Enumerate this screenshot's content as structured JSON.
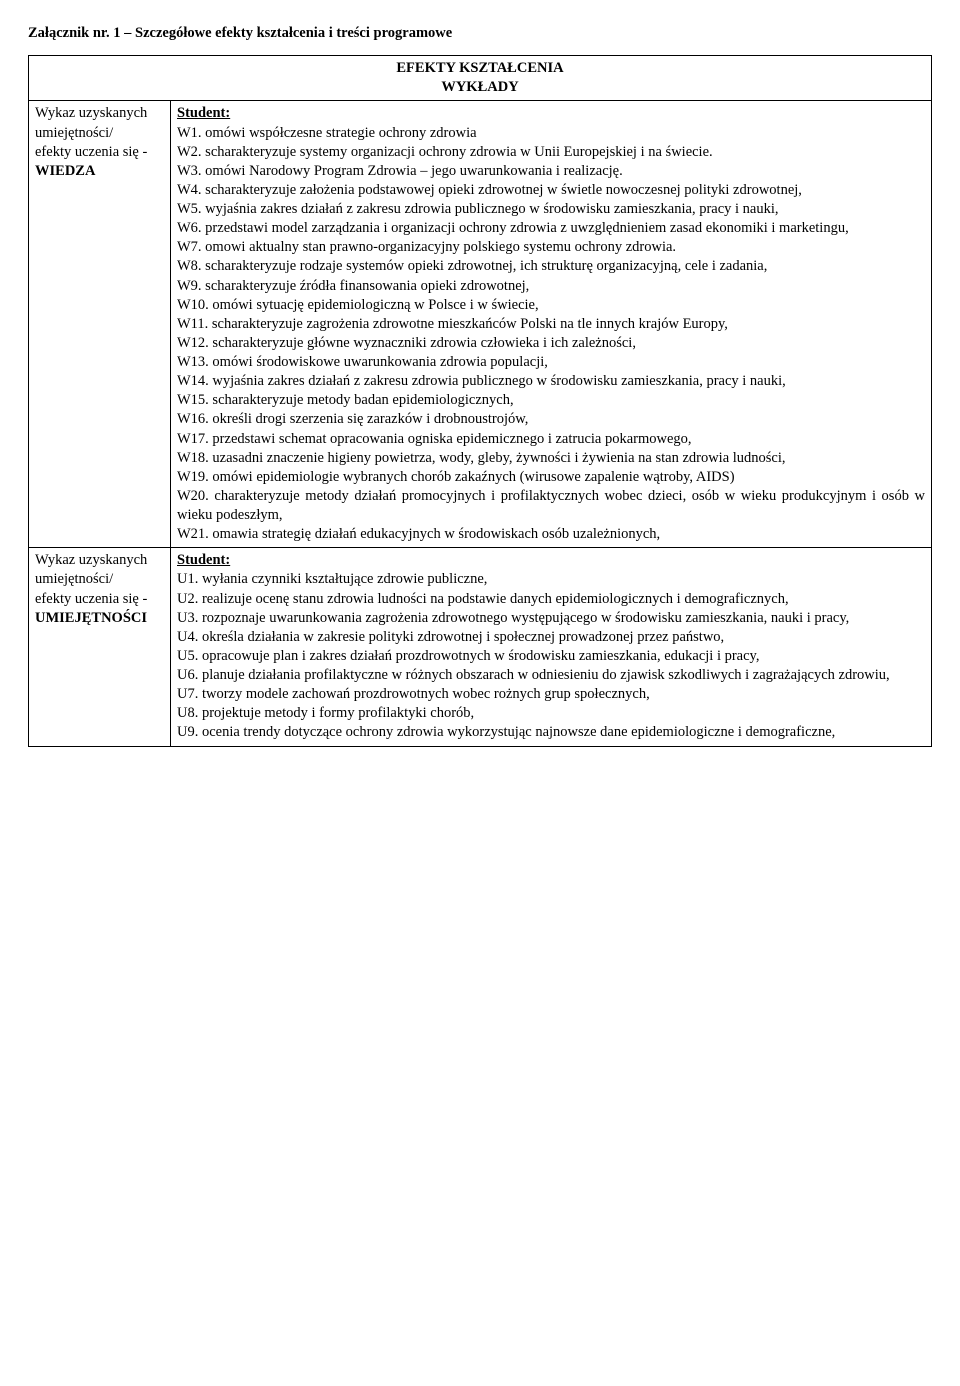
{
  "title": "Załącznik nr. 1 – Szczegółowe efekty kształcenia i treści programowe",
  "header": {
    "line1": "EFEKTY KSZTAŁCENIA",
    "line2": "WYKŁADY"
  },
  "leftLabels": {
    "wiedza": {
      "l1": "Wykaz uzyskanych",
      "l2": "umiejętności/",
      "l3": "efekty uczenia się -",
      "l4": "WIEDZA"
    },
    "umiej": {
      "l1": "Wykaz uzyskanych",
      "l2": "umiejętności/",
      "l3": "efekty uczenia się -",
      "l4": "UMIEJĘTNOŚCI"
    }
  },
  "studentLabel": "Student:",
  "wiedzaItems": [
    "W1.  omówi współczesne strategie ochrony zdrowia",
    "W2.  scharakteryzuje systemy organizacji ochrony zdrowia  w Unii Europejskiej i na świecie.",
    "W3.  omówi  Narodowy Program Zdrowia – jego uwarunkowania  i realizację.",
    "W4.  scharakteryzuje założenia podstawowej opieki zdrowotnej w świetle nowoczesnej polityki zdrowotnej,",
    "W5.  wyjaśnia zakres działań z zakresu zdrowia publicznego w środowisku zamieszkania, pracy i nauki,",
    "W6.  przedstawi model  zarządzania i  organizacji ochrony zdrowia z uwzględnieniem zasad  ekonomiki i marketingu,",
    "W7.  omowi aktualny stan prawno-organizacyjny polskiego systemu ochrony zdrowia.",
    "W8.  scharakteryzuje rodzaje systemów opieki zdrowotnej, ich strukturę organizacyjną, cele i zadania,",
    "W9.  scharakteryzuje źródła finansowania opieki zdrowotnej,",
    "W10.  omówi sytuację epidemiologiczną w Polsce  i w świecie,",
    "W11. scharakteryzuje zagrożenia zdrowotne mieszkańców Polski na tle innych krajów Europy,",
    "W12.  scharakteryzuje główne wyznaczniki zdrowia  człowieka i  ich zależności,",
    "W13.  omówi środowiskowe uwarunkowania zdrowia  populacji,",
    "W14.  wyjaśnia zakres działań z zakresu zdrowia publicznego w środowisku zamieszkania, pracy i nauki,",
    "W15.  scharakteryzuje metody badan epidemiologicznych,",
    "W16.  określi drogi szerzenia się zarazków i drobnoustrojów,",
    "W17.  przedstawi schemat opracowania ogniska epidemicznego i zatrucia pokarmowego,",
    "W18. uzasadni znaczenie higieny powietrza, wody, gleby, żywności i żywienia na stan zdrowia ludności,",
    "W19.  omówi epidemiologie wybranych chorób zakaźnych (wirusowe zapalenie wątroby, AIDS)",
    "W20. charakteryzuje metody działań promocyjnych i profilaktycznych wobec dzieci, osób w wieku produkcyjnym i osób w wieku podeszłym,",
    "W21.  omawia strategię działań edukacyjnych w środowiskach osób uzależnionych,"
  ],
  "umiejItems": [
    "U1.  wyłania czynniki kształtujące zdrowie publiczne,",
    "U2.  realizuje ocenę stanu zdrowia ludności na podstawie danych epidemiologicznych i demograficznych,",
    "U3.  rozpoznaje uwarunkowania  zagrożenia zdrowotnego występującego w środowisku zamieszkania, nauki  i pracy,",
    "U4.  określa   działania w zakresie polityki zdrowotnej  i społecznej prowadzonej przez państwo,",
    "U5.  opracowuje plan i zakres działań prozdrowotnych w środowisku zamieszkania, edukacji i pracy,",
    "U6.  planuje działania profilaktyczne  w różnych  obszarach w odniesieniu do zjawisk szkodliwych  i zagrażających zdrowiu,",
    "U7.  tworzy modele zachowań prozdrowotnych wobec  rożnych grup społecznych,",
    "U8.  projektuje metody i formy profilaktyki chorób,",
    "U9.  ocenia trendy dotyczące ochrony zdrowia wykorzystując najnowsze dane epidemiologiczne i demograficzne,"
  ]
}
